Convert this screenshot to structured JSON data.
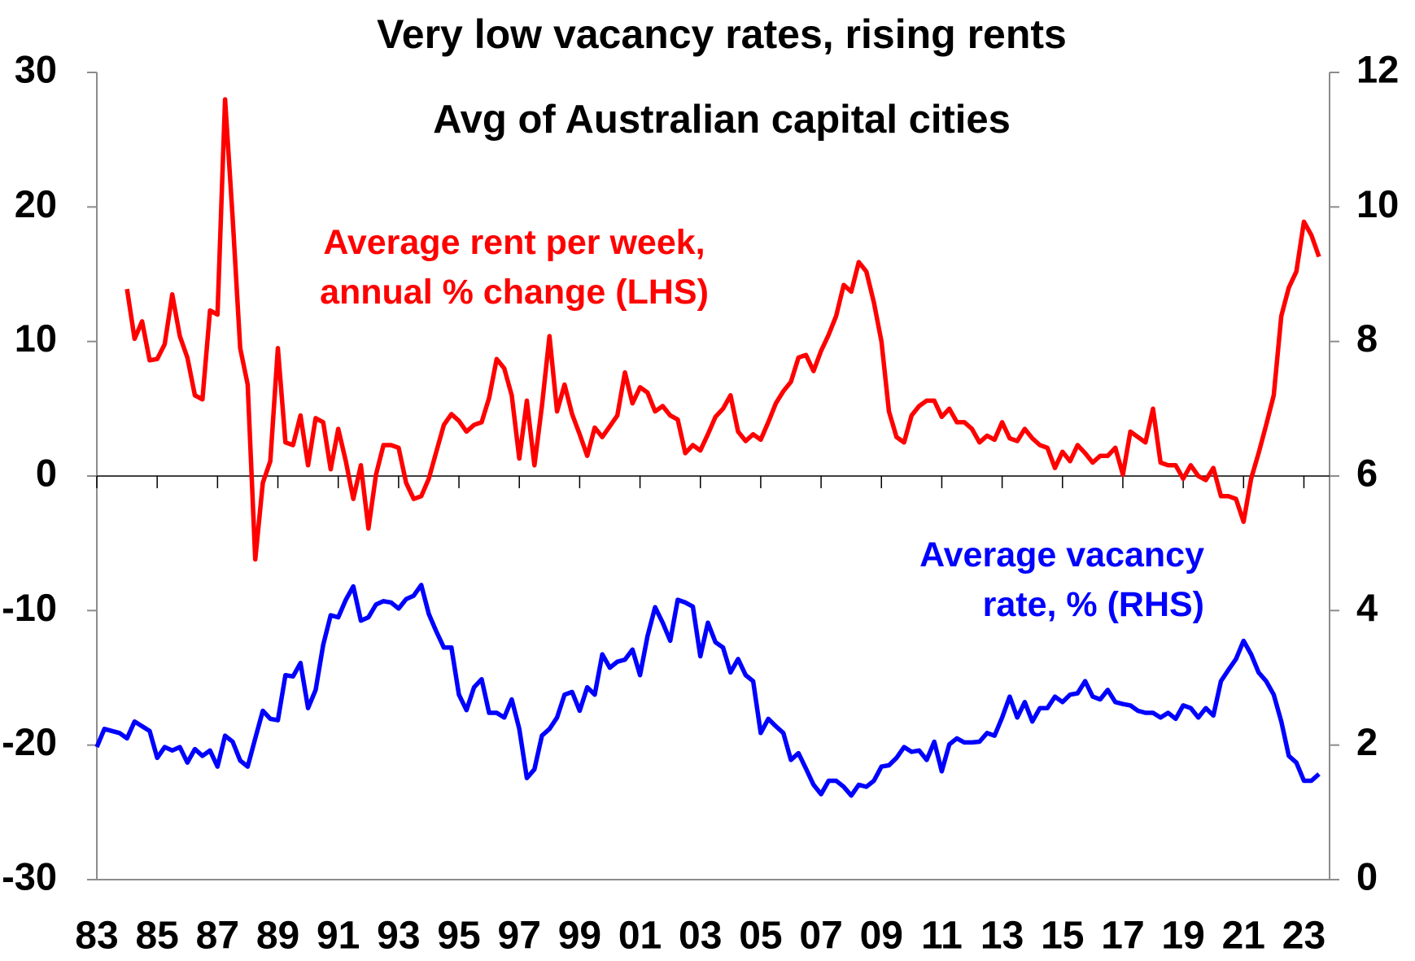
{
  "chart_data": {
    "type": "line",
    "title": "Very low vacancy rates, rising rents",
    "subtitle": "Avg of Australian capital cities",
    "xlim": [
      1983,
      2023.85
    ],
    "xticks": [
      {
        "value": 1983,
        "label": "83"
      },
      {
        "value": 1985,
        "label": "85"
      },
      {
        "value": 1987,
        "label": "87"
      },
      {
        "value": 1989,
        "label": "89"
      },
      {
        "value": 1991,
        "label": "91"
      },
      {
        "value": 1993,
        "label": "93"
      },
      {
        "value": 1995,
        "label": "95"
      },
      {
        "value": 1997,
        "label": "97"
      },
      {
        "value": 1999,
        "label": "99"
      },
      {
        "value": 2001,
        "label": "01"
      },
      {
        "value": 2003,
        "label": "03"
      },
      {
        "value": 2005,
        "label": "05"
      },
      {
        "value": 2007,
        "label": "07"
      },
      {
        "value": 2009,
        "label": "09"
      },
      {
        "value": 2011,
        "label": "11"
      },
      {
        "value": 2013,
        "label": "13"
      },
      {
        "value": 2015,
        "label": "15"
      },
      {
        "value": 2017,
        "label": "17"
      },
      {
        "value": 2019,
        "label": "19"
      },
      {
        "value": 2021,
        "label": "21"
      },
      {
        "value": 2023,
        "label": "23"
      }
    ],
    "ylim": [
      -30,
      30
    ],
    "yticks": [
      -30,
      -20,
      -10,
      0,
      10,
      20,
      30
    ],
    "y2lim": [
      0,
      12
    ],
    "y2ticks": [
      0,
      2,
      4,
      6,
      8,
      10,
      12
    ],
    "grid": false,
    "series": [
      {
        "name": "Average rent per week,\nannual % change (LHS)",
        "color": "#ff0000",
        "axis": "y",
        "x": [
          1984,
          1984.25,
          1984.5,
          1984.75,
          1985,
          1985.25,
          1985.5,
          1985.75,
          1986,
          1986.25,
          1986.5,
          1986.75,
          1987,
          1987.25,
          1987.5,
          1987.75,
          1988,
          1988.25,
          1988.5,
          1988.75,
          1989,
          1989.25,
          1989.5,
          1989.75,
          1990,
          1990.25,
          1990.5,
          1990.75,
          1991,
          1991.25,
          1991.5,
          1991.75,
          1992,
          1992.25,
          1992.5,
          1992.75,
          1993,
          1993.25,
          1993.5,
          1993.75,
          1994,
          1994.25,
          1994.5,
          1994.75,
          1995,
          1995.25,
          1995.5,
          1995.75,
          1996,
          1996.25,
          1996.5,
          1996.75,
          1997,
          1997.25,
          1997.5,
          1997.75,
          1998,
          1998.25,
          1998.5,
          1998.75,
          1999,
          1999.25,
          1999.5,
          1999.75,
          2000,
          2000.25,
          2000.5,
          2000.75,
          2001,
          2001.25,
          2001.5,
          2001.75,
          2002,
          2002.25,
          2002.5,
          2002.75,
          2003,
          2003.25,
          2003.5,
          2003.75,
          2004,
          2004.25,
          2004.5,
          2004.75,
          2005,
          2005.25,
          2005.5,
          2005.75,
          2006,
          2006.25,
          2006.5,
          2006.75,
          2007,
          2007.25,
          2007.5,
          2007.75,
          2008,
          2008.25,
          2008.5,
          2008.75,
          2009,
          2009.25,
          2009.5,
          2009.75,
          2010,
          2010.25,
          2010.5,
          2010.75,
          2011,
          2011.25,
          2011.5,
          2011.75,
          2012,
          2012.25,
          2012.5,
          2012.75,
          2013,
          2013.25,
          2013.5,
          2013.75,
          2014,
          2014.25,
          2014.5,
          2014.75,
          2015,
          2015.25,
          2015.5,
          2015.75,
          2016,
          2016.25,
          2016.5,
          2016.75,
          2017,
          2017.25,
          2017.5,
          2017.75,
          2018,
          2018.25,
          2018.5,
          2018.75,
          2019,
          2019.25,
          2019.5,
          2019.75,
          2020,
          2020.25,
          2020.5,
          2020.75,
          2021,
          2021.25,
          2021.5,
          2021.75,
          2022,
          2022.25,
          2022.5,
          2022.75,
          2023,
          2023.25,
          2023.5
        ],
        "values": [
          13.9,
          10.2,
          11.5,
          8.6,
          8.7,
          9.8,
          13.5,
          10.4,
          8.8,
          6.0,
          5.7,
          12.3,
          12.0,
          28.0,
          19.2,
          9.5,
          6.8,
          -6.2,
          -0.5,
          1.1,
          9.5,
          2.5,
          2.3,
          4.5,
          0.8,
          4.3,
          4.0,
          0.5,
          3.5,
          1.1,
          -1.7,
          0.8,
          -3.9,
          0.1,
          2.3,
          2.3,
          2.1,
          -0.5,
          -1.7,
          -1.5,
          -0.2,
          1.8,
          3.8,
          4.6,
          4.1,
          3.3,
          3.8,
          4.0,
          5.8,
          8.7,
          8.0,
          6.0,
          1.3,
          5.6,
          0.8,
          5.2,
          10.4,
          4.8,
          6.8,
          4.6,
          3.1,
          1.5,
          3.6,
          2.9,
          3.7,
          4.5,
          7.7,
          5.4,
          6.6,
          6.2,
          4.8,
          5.2,
          4.5,
          4.2,
          1.7,
          2.3,
          1.9,
          3.1,
          4.4,
          5.0,
          6.0,
          3.3,
          2.6,
          3.1,
          2.7,
          4.0,
          5.4,
          6.3,
          7.0,
          8.8,
          9.0,
          7.8,
          9.3,
          10.5,
          11.9,
          14.2,
          13.7,
          15.9,
          15.2,
          12.9,
          10.0,
          4.8,
          2.9,
          2.5,
          4.5,
          5.2,
          5.6,
          5.6,
          4.4,
          5.0,
          4.0,
          4.0,
          3.5,
          2.5,
          3.0,
          2.7,
          4.0,
          2.8,
          2.6,
          3.5,
          2.8,
          2.3,
          2.1,
          0.6,
          1.8,
          1.1,
          2.3,
          1.7,
          1.0,
          1.5,
          1.5,
          2.1,
          0.1,
          3.3,
          2.9,
          2.5,
          5.0,
          1.0,
          0.8,
          0.8,
          -0.2,
          0.8,
          0,
          -0.3,
          0.6,
          -1.5,
          -1.5,
          -1.7,
          -3.4,
          -0.2,
          1.7,
          3.8,
          6.0,
          11.9,
          14.0,
          15.2,
          18.9,
          17.9,
          16.3
        ]
      },
      {
        "name": "Average vacancy\nrate, % (RHS)",
        "color": "#0000ff",
        "axis": "y2",
        "x": [
          1983,
          1983.25,
          1983.5,
          1983.75,
          1984,
          1984.25,
          1984.5,
          1984.75,
          1985,
          1985.25,
          1985.5,
          1985.75,
          1986,
          1986.25,
          1986.5,
          1986.75,
          1987,
          1987.25,
          1987.5,
          1987.75,
          1988,
          1988.25,
          1988.5,
          1988.75,
          1989,
          1989.25,
          1989.5,
          1989.75,
          1990,
          1990.25,
          1990.5,
          1990.75,
          1991,
          1991.25,
          1991.5,
          1991.75,
          1992,
          1992.25,
          1992.5,
          1992.75,
          1993,
          1993.25,
          1993.5,
          1993.75,
          1994,
          1994.25,
          1994.5,
          1994.75,
          1995,
          1995.25,
          1995.5,
          1995.75,
          1996,
          1996.25,
          1996.5,
          1996.75,
          1997,
          1997.25,
          1997.5,
          1997.75,
          1998,
          1998.25,
          1998.5,
          1998.75,
          1999,
          1999.25,
          1999.5,
          1999.75,
          2000,
          2000.25,
          2000.5,
          2000.75,
          2001,
          2001.25,
          2001.5,
          2001.75,
          2002,
          2002.25,
          2002.5,
          2002.75,
          2003,
          2003.25,
          2003.5,
          2003.75,
          2004,
          2004.25,
          2004.5,
          2004.75,
          2005,
          2005.25,
          2005.5,
          2005.75,
          2006,
          2006.25,
          2006.5,
          2006.75,
          2007,
          2007.25,
          2007.5,
          2007.75,
          2008,
          2008.25,
          2008.5,
          2008.75,
          2009,
          2009.25,
          2009.5,
          2009.75,
          2010,
          2010.25,
          2010.5,
          2010.75,
          2011,
          2011.25,
          2011.5,
          2011.75,
          2012,
          2012.25,
          2012.5,
          2012.75,
          2013,
          2013.25,
          2013.5,
          2013.75,
          2014,
          2014.25,
          2014.5,
          2014.75,
          2015,
          2015.25,
          2015.5,
          2015.75,
          2016,
          2016.25,
          2016.5,
          2016.75,
          2017,
          2017.25,
          2017.5,
          2017.75,
          2018,
          2018.25,
          2018.5,
          2018.75,
          2019,
          2019.25,
          2019.5,
          2019.75,
          2020,
          2020.25,
          2020.5,
          2020.75,
          2021,
          2021.25,
          2021.5,
          2021.75,
          2022,
          2022.25,
          2022.5,
          2022.75,
          2023,
          2023.25,
          2023.5
        ],
        "values": [
          1.97,
          2.24,
          2.21,
          2.18,
          2.1,
          2.35,
          2.28,
          2.21,
          1.81,
          1.97,
          1.92,
          1.97,
          1.74,
          1.94,
          1.84,
          1.92,
          1.68,
          2.14,
          2.05,
          1.77,
          1.68,
          2.1,
          2.51,
          2.39,
          2.37,
          3.04,
          3.02,
          3.22,
          2.55,
          2.82,
          3.49,
          3.93,
          3.9,
          4.16,
          4.36,
          3.85,
          3.9,
          4.09,
          4.14,
          4.12,
          4.03,
          4.17,
          4.22,
          4.38,
          3.95,
          3.69,
          3.45,
          3.45,
          2.75,
          2.52,
          2.86,
          2.98,
          2.48,
          2.48,
          2.41,
          2.68,
          2.24,
          1.51,
          1.64,
          2.14,
          2.24,
          2.41,
          2.75,
          2.79,
          2.51,
          2.86,
          2.75,
          3.35,
          3.15,
          3.24,
          3.27,
          3.42,
          3.04,
          3.62,
          4.05,
          3.82,
          3.55,
          4.16,
          4.12,
          4.06,
          3.32,
          3.82,
          3.53,
          3.45,
          3.08,
          3.28,
          3.04,
          2.95,
          2.18,
          2.39,
          2.28,
          2.18,
          1.78,
          1.88,
          1.65,
          1.41,
          1.27,
          1.47,
          1.47,
          1.38,
          1.25,
          1.41,
          1.38,
          1.47,
          1.68,
          1.7,
          1.81,
          1.97,
          1.9,
          1.92,
          1.78,
          2.05,
          1.61,
          2.01,
          2.1,
          2.04,
          2.04,
          2.05,
          2.18,
          2.14,
          2.41,
          2.72,
          2.41,
          2.64,
          2.35,
          2.55,
          2.55,
          2.72,
          2.64,
          2.75,
          2.77,
          2.95,
          2.72,
          2.68,
          2.82,
          2.64,
          2.61,
          2.59,
          2.51,
          2.48,
          2.48,
          2.41,
          2.48,
          2.39,
          2.59,
          2.55,
          2.41,
          2.55,
          2.44,
          2.95,
          3.12,
          3.28,
          3.55,
          3.35,
          3.08,
          2.95,
          2.75,
          2.35,
          1.84,
          1.74,
          1.47,
          1.47,
          1.57
        ]
      }
    ]
  }
}
